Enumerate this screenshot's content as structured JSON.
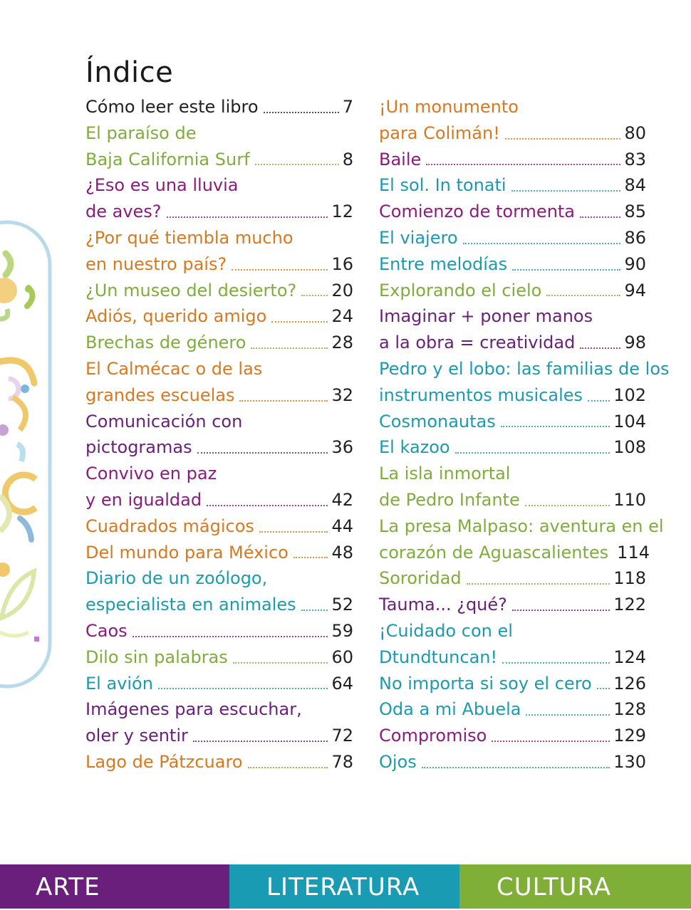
{
  "page": {
    "title": "Índice"
  },
  "left_column": [
    {
      "text": "Cómo leer este libro",
      "page": "7",
      "color": "black"
    },
    {
      "text": "El paraíso de",
      "page": "",
      "color": "green"
    },
    {
      "text": "Baja California Surf",
      "page": "8",
      "color": "green"
    },
    {
      "text": "¿Eso es una lluvia",
      "page": "",
      "color": "purple"
    },
    {
      "text": "de aves?",
      "page": "12",
      "color": "purple"
    },
    {
      "text": "¿Por qué tiembla mucho",
      "page": "",
      "color": "orange"
    },
    {
      "text": "en nuestro país?",
      "page": "16",
      "color": "orange"
    },
    {
      "text": "¿Un museo del desierto?",
      "page": "20",
      "color": "green"
    },
    {
      "text": "Adiós, querido amigo",
      "page": "24",
      "color": "orange"
    },
    {
      "text": "Brechas de género",
      "page": "28",
      "color": "green"
    },
    {
      "text": "El Calmécac o de las",
      "page": "",
      "color": "orange"
    },
    {
      "text": "grandes escuelas",
      "page": "32",
      "color": "orange"
    },
    {
      "text": "Comunicación con",
      "page": "",
      "color": "violet"
    },
    {
      "text": "pictogramas",
      "page": "36",
      "color": "violet"
    },
    {
      "text": "Convivo en paz",
      "page": "",
      "color": "purple"
    },
    {
      "text": "y en igualdad",
      "page": "42",
      "color": "purple"
    },
    {
      "text": "Cuadrados mágicos",
      "page": "44",
      "color": "orange"
    },
    {
      "text": "Del mundo para México",
      "page": "48",
      "color": "orange"
    },
    {
      "text": "Diario de un zoólogo,",
      "page": "",
      "color": "teal"
    },
    {
      "text": "especialista en animales",
      "page": "52",
      "color": "teal"
    },
    {
      "text": "Caos",
      "page": "59",
      "color": "purple"
    },
    {
      "text": "Dilo sin palabras",
      "page": "60",
      "color": "green"
    },
    {
      "text": "El avión",
      "page": "64",
      "color": "teal"
    },
    {
      "text": "Imágenes para escuchar,",
      "page": "",
      "color": "violet"
    },
    {
      "text": "oler y sentir",
      "page": "72",
      "color": "violet"
    },
    {
      "text": "Lago de Pátzcuaro",
      "page": "78",
      "color": "orange"
    }
  ],
  "right_column": [
    {
      "text": "¡Un monumento",
      "page": "",
      "color": "orange"
    },
    {
      "text": "para Colimán!",
      "page": "80",
      "color": "orange"
    },
    {
      "text": "Baile",
      "page": "83",
      "color": "purple"
    },
    {
      "text": "El sol. In tonati",
      "page": "84",
      "color": "teal"
    },
    {
      "text": "Comienzo de tormenta",
      "page": "85",
      "color": "purple"
    },
    {
      "text": "El viajero",
      "page": "86",
      "color": "teal"
    },
    {
      "text": "Entre melodías",
      "page": "90",
      "color": "teal"
    },
    {
      "text": "Explorando el cielo",
      "page": "94",
      "color": "green"
    },
    {
      "text": "Imaginar + poner manos",
      "page": "",
      "color": "violet"
    },
    {
      "text": "a la obra = creatividad",
      "page": "98",
      "color": "violet"
    },
    {
      "text": "Pedro y el lobo: las familias de los",
      "page": "",
      "color": "teal"
    },
    {
      "text": "instrumentos musicales",
      "page": "102",
      "color": "teal"
    },
    {
      "text": "Cosmonautas",
      "page": "104",
      "color": "teal"
    },
    {
      "text": "El kazoo",
      "page": "108",
      "color": "teal"
    },
    {
      "text": "La isla inmortal",
      "page": "",
      "color": "green"
    },
    {
      "text": "de Pedro Infante",
      "page": "110",
      "color": "green"
    },
    {
      "text": "La presa Malpaso: aventura en el",
      "page": "",
      "color": "green"
    },
    {
      "text": "corazón de Aguascalientes",
      "page": "114",
      "color": "green"
    },
    {
      "text": "Sororidad",
      "page": "118",
      "color": "green"
    },
    {
      "text": "Tauma... ¿qué?",
      "page": "122",
      "color": "violet"
    },
    {
      "text": "¡Cuidado con el",
      "page": "",
      "color": "teal"
    },
    {
      "text": "Dtundtuncan!",
      "page": "124",
      "color": "teal"
    },
    {
      "text": "No importa si soy el cero",
      "page": "126",
      "color": "teal"
    },
    {
      "text": "Oda a mi Abuela",
      "page": "128",
      "color": "teal"
    },
    {
      "text": "Compromiso",
      "page": "129",
      "color": "purple"
    },
    {
      "text": "Ojos",
      "page": "130",
      "color": "teal"
    }
  ],
  "footer": {
    "arte": "ARTE",
    "literatura": "LITERATURA",
    "cultura": "CULTURA"
  },
  "colors": {
    "black": "#222222",
    "green": "#7fad3b",
    "purple": "#8b1b7e",
    "orange": "#d9781f",
    "teal": "#1a9bb0",
    "violet": "#6a1f7a",
    "arte_bg": "#6b1f7c",
    "literatura_bg": "#1a9bb4",
    "cultura_bg": "#7faf36"
  }
}
